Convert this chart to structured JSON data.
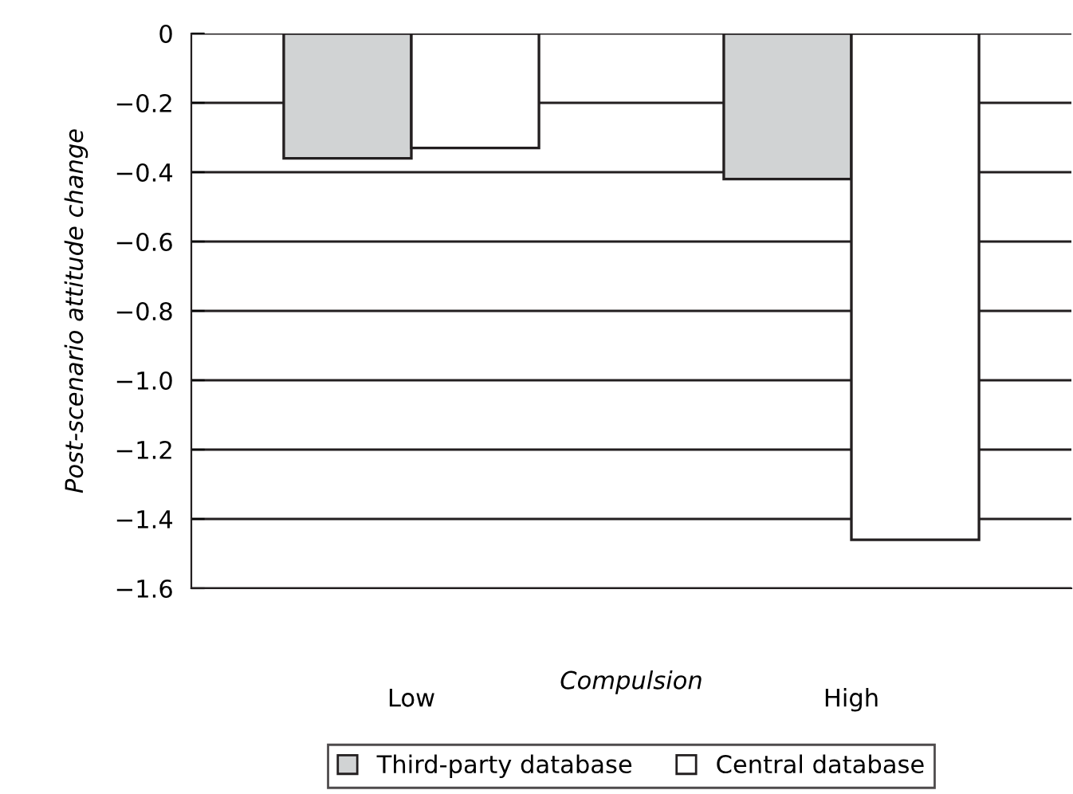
{
  "chart_data": {
    "type": "bar",
    "categories": [
      "Low",
      "High"
    ],
    "xlabel": "Compulsion",
    "ylabel": "Post-scenario attitude change",
    "series": [
      {
        "name": "Third-party database",
        "color": "#d1d3d4",
        "values": [
          -0.36,
          -0.42
        ]
      },
      {
        "name": "Central database",
        "color": "#ffffff",
        "values": [
          -0.33,
          -1.46
        ]
      }
    ],
    "ylim": [
      -1.6,
      0
    ],
    "yticks": [
      {
        "value": 0,
        "label": "0"
      },
      {
        "value": -0.2,
        "label": "−0.2"
      },
      {
        "value": -0.4,
        "label": "−0.4"
      },
      {
        "value": -0.6,
        "label": "−0.6"
      },
      {
        "value": -0.8,
        "label": "−0.8"
      },
      {
        "value": -1.0,
        "label": "−1.0"
      },
      {
        "value": -1.2,
        "label": "−1.2"
      },
      {
        "value": -1.4,
        "label": "−1.4"
      },
      {
        "value": -1.6,
        "label": "−1.6"
      }
    ],
    "grid": "y",
    "legend": "bottom"
  }
}
